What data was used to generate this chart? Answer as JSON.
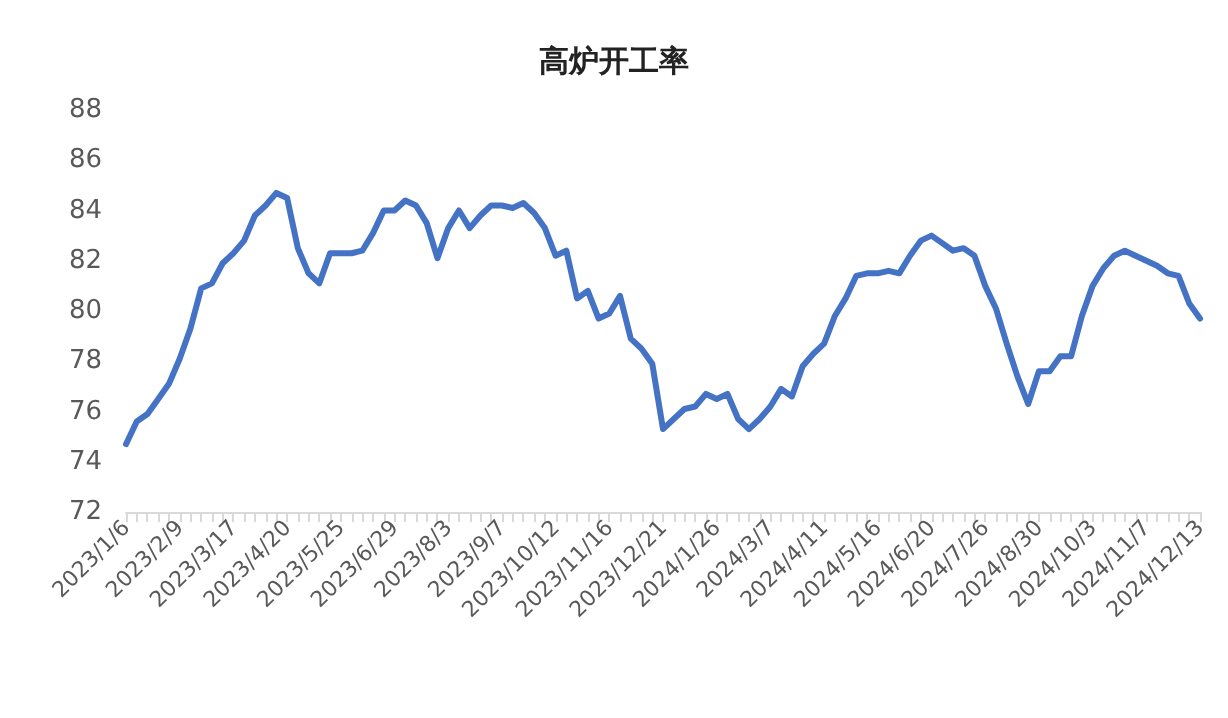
{
  "chart_data": {
    "type": "line",
    "title": "高炉开工率",
    "categories": [
      "2023/1/6",
      null,
      null,
      null,
      null,
      "2023/2/9",
      null,
      null,
      null,
      null,
      "2023/3/17",
      null,
      null,
      null,
      null,
      "2023/4/20",
      null,
      null,
      null,
      null,
      "2023/5/25",
      null,
      null,
      null,
      null,
      "2023/6/29",
      null,
      null,
      null,
      null,
      "2023/8/3",
      null,
      null,
      null,
      null,
      "2023/9/7",
      null,
      null,
      null,
      null,
      "2023/10/12",
      null,
      null,
      null,
      null,
      "2023/11/16",
      null,
      null,
      null,
      null,
      "2023/12/21",
      null,
      null,
      null,
      null,
      "2024/1/26",
      null,
      null,
      null,
      null,
      "2024/3/7",
      null,
      null,
      null,
      null,
      "2024/4/11",
      null,
      null,
      null,
      null,
      "2024/5/16",
      null,
      null,
      null,
      null,
      "2024/6/20",
      null,
      null,
      null,
      null,
      "2024/7/26",
      null,
      null,
      null,
      null,
      "2024/8/30",
      null,
      null,
      null,
      null,
      "2024/10/3",
      null,
      null,
      null,
      null,
      "2024/11/7",
      null,
      null,
      null,
      null,
      "2024/12/13"
    ],
    "series": [
      {
        "color": "#4472c4",
        "values": [
          74.7,
          75.6,
          75.9,
          76.5,
          77.1,
          78.1,
          79.3,
          80.9,
          81.1,
          81.9,
          82.3,
          82.8,
          83.8,
          84.2,
          84.7,
          84.5,
          82.5,
          81.5,
          81.1,
          82.3,
          82.3,
          82.3,
          82.4,
          83.1,
          84.0,
          84.0,
          84.4,
          84.2,
          83.5,
          82.1,
          83.3,
          84.0,
          83.3,
          83.8,
          84.2,
          84.2,
          84.1,
          84.3,
          83.9,
          83.3,
          82.2,
          82.4,
          80.5,
          80.8,
          79.7,
          79.9,
          80.6,
          78.9,
          78.5,
          77.9,
          75.3,
          75.7,
          76.1,
          76.2,
          76.7,
          76.5,
          76.7,
          75.7,
          75.3,
          75.7,
          76.2,
          76.9,
          76.6,
          77.8,
          78.3,
          78.7,
          79.8,
          80.5,
          81.4,
          81.5,
          81.5,
          81.6,
          81.5,
          82.2,
          82.8,
          83.0,
          82.7,
          82.4,
          82.5,
          82.2,
          81.0,
          80.1,
          78.7,
          77.4,
          76.3,
          77.6,
          77.6,
          78.2,
          78.2,
          79.8,
          81.0,
          81.7,
          82.2,
          82.4,
          82.2,
          82.0,
          81.8,
          81.5,
          81.4,
          80.3,
          79.7
        ]
      }
    ],
    "ylim": [
      72,
      88
    ],
    "yticks": [
      72,
      74,
      76,
      78,
      80,
      82,
      84,
      86,
      88
    ],
    "marker": "none",
    "line_style": "solid"
  }
}
